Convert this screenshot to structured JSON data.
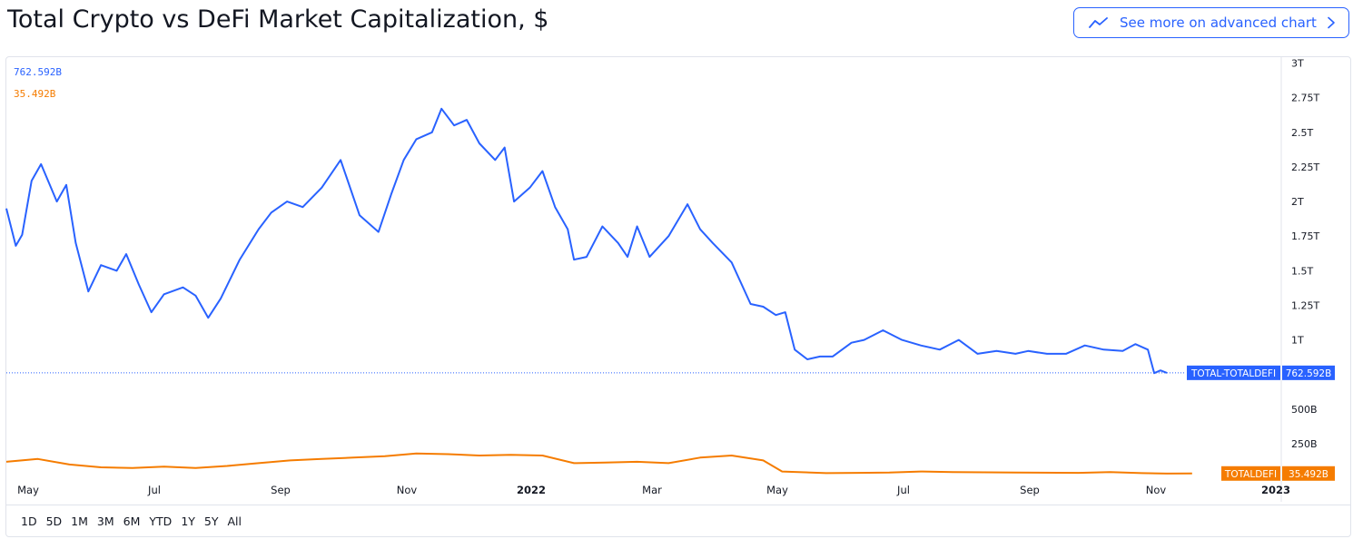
{
  "header": {
    "title": "Total Crypto vs DeFi Market Capitalization, $",
    "advanced_button_label": "See more on advanced chart"
  },
  "legend": {
    "total_value": "762.592B",
    "defi_value": "35.492B"
  },
  "colors": {
    "total": "#2962ff",
    "defi": "#f57c00",
    "grid": "#e0e3eb",
    "text": "#131722"
  },
  "range_buttons": [
    "1D",
    "5D",
    "1M",
    "3M",
    "6M",
    "YTD",
    "1Y",
    "5Y",
    "All"
  ],
  "chart_data": {
    "type": "line",
    "title": "Total Crypto vs DeFi Market Capitalization, $",
    "y_unit": "USD (billions)",
    "ylim": [
      0,
      3000
    ],
    "y_ticks": [
      {
        "label": "3T",
        "value": 3000
      },
      {
        "label": "2.75T",
        "value": 2750
      },
      {
        "label": "2.5T",
        "value": 2500
      },
      {
        "label": "2.25T",
        "value": 2250
      },
      {
        "label": "2T",
        "value": 2000
      },
      {
        "label": "1.75T",
        "value": 1750
      },
      {
        "label": "1.5T",
        "value": 1500
      },
      {
        "label": "1.25T",
        "value": 1250
      },
      {
        "label": "1T",
        "value": 1000
      },
      {
        "label": "500B",
        "value": 500
      },
      {
        "label": "250B",
        "value": 250
      }
    ],
    "x_ticks": [
      "May",
      "Jul",
      "Sep",
      "Nov",
      "2022",
      "Mar",
      "May",
      "Jul",
      "Sep",
      "Nov",
      "2023"
    ],
    "x_tick_bold": [
      false,
      false,
      false,
      false,
      true,
      false,
      false,
      false,
      false,
      false,
      true
    ],
    "x_range_months": [
      0,
      20.2
    ],
    "series": [
      {
        "name": "TOTAL-TOTALDEFI",
        "color": "#2962ff",
        "last_value_label": "762.592B",
        "x": [
          0,
          0.15,
          0.25,
          0.4,
          0.55,
          0.8,
          0.95,
          1.1,
          1.3,
          1.5,
          1.75,
          1.9,
          2.1,
          2.3,
          2.5,
          2.8,
          3.0,
          3.2,
          3.4,
          3.7,
          4.0,
          4.2,
          4.45,
          4.7,
          5.0,
          5.3,
          5.6,
          5.9,
          6.1,
          6.3,
          6.5,
          6.75,
          6.9,
          7.1,
          7.3,
          7.5,
          7.75,
          7.9,
          8.05,
          8.3,
          8.5,
          8.7,
          8.9,
          9.0,
          9.2,
          9.45,
          9.7,
          9.85,
          10.0,
          10.2,
          10.5,
          10.8,
          11.0,
          11.2,
          11.5,
          11.8,
          12.0,
          12.2,
          12.35,
          12.5,
          12.7,
          12.9,
          13.1,
          13.4,
          13.6,
          13.9,
          14.2,
          14.5,
          14.8,
          15.1,
          15.4,
          15.7,
          16.0,
          16.2,
          16.5,
          16.8,
          17.1,
          17.4,
          17.7,
          17.9,
          18.1,
          18.2,
          18.3,
          18.4
        ],
        "y": [
          1950,
          1680,
          1760,
          2150,
          2270,
          2000,
          2120,
          1700,
          1350,
          1540,
          1500,
          1620,
          1400,
          1200,
          1330,
          1380,
          1320,
          1160,
          1300,
          1580,
          1800,
          1920,
          2000,
          1960,
          2100,
          2300,
          1900,
          1780,
          2050,
          2300,
          2450,
          2500,
          2670,
          2550,
          2590,
          2420,
          2300,
          2390,
          2000,
          2100,
          2220,
          1960,
          1800,
          1580,
          1600,
          1820,
          1700,
          1600,
          1820,
          1600,
          1750,
          1980,
          1800,
          1700,
          1560,
          1260,
          1240,
          1180,
          1200,
          930,
          860,
          880,
          880,
          980,
          1000,
          1070,
          1000,
          960,
          930,
          1000,
          900,
          920,
          900,
          920,
          900,
          900,
          960,
          930,
          920,
          970,
          930,
          760,
          780,
          762.592
        ]
      },
      {
        "name": "TOTALDEFI",
        "color": "#f57c00",
        "last_value_label": "35.492B",
        "x": [
          0,
          0.5,
          1.0,
          1.5,
          2.0,
          2.5,
          3.0,
          3.5,
          4.0,
          4.5,
          5.0,
          5.5,
          6.0,
          6.5,
          7.0,
          7.5,
          8.0,
          8.5,
          9.0,
          9.5,
          10.0,
          10.5,
          11.0,
          11.5,
          12.0,
          12.3,
          13.0,
          13.5,
          14.0,
          14.5,
          15.0,
          16.0,
          17.0,
          17.5,
          18.0,
          18.4,
          18.8
        ],
        "y": [
          120,
          140,
          100,
          80,
          75,
          85,
          75,
          90,
          110,
          130,
          140,
          150,
          160,
          180,
          175,
          165,
          170,
          165,
          110,
          115,
          120,
          110,
          150,
          165,
          130,
          50,
          38,
          40,
          42,
          50,
          45,
          42,
          40,
          45,
          38,
          35,
          35.492
        ]
      }
    ]
  }
}
